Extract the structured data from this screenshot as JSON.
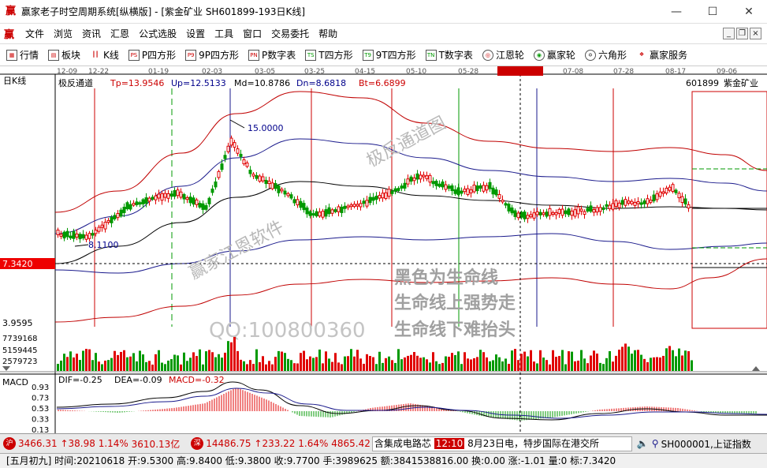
{
  "window": {
    "title": "赢家老子时空周期系统[纵横版] - [紫金矿业  SH601899-193日K线]",
    "controls": [
      "—",
      "☐",
      "✕"
    ]
  },
  "menu": {
    "items": [
      "文件",
      "浏览",
      "资讯",
      "汇恩",
      "公式选股",
      "设置",
      "工具",
      "窗口",
      "交易委托",
      "帮助"
    ],
    "mdi_controls": [
      "_",
      "❐",
      "×"
    ]
  },
  "toolbar": {
    "items": [
      {
        "label": "行情",
        "icon": "grid-icon"
      },
      {
        "label": "板块",
        "icon": "board-icon"
      },
      {
        "label": "K线",
        "icon": "kline-icon"
      },
      {
        "label": "P四方形",
        "icon": "ps-icon",
        "badge": "PS"
      },
      {
        "label": "9P四方形",
        "icon": "p9-icon",
        "badge": "P9"
      },
      {
        "label": "P数字表",
        "icon": "pn-icon",
        "badge": "PN"
      },
      {
        "label": "T四方形",
        "icon": "ts-icon",
        "badge": "TS"
      },
      {
        "label": "9T四方形",
        "icon": "t9-icon",
        "badge": "T9"
      },
      {
        "label": "T数字表",
        "icon": "tn-icon",
        "badge": "TN"
      },
      {
        "label": "江恩轮",
        "icon": "gann-wheel-icon"
      },
      {
        "label": "赢家轮",
        "icon": "winner-wheel-icon"
      },
      {
        "label": "六角形",
        "icon": "hexagon-icon"
      },
      {
        "label": "赢家服务",
        "icon": "service-icon"
      }
    ]
  },
  "chart": {
    "period_label": "日K线",
    "date_ticks": [
      "12-09",
      "12-22",
      "01-19",
      "02-03",
      "03-05",
      "03-25",
      "04-15",
      "05-10",
      "05-28",
      "2021-06-18",
      "07-08",
      "07-28",
      "08-17",
      "09-06"
    ],
    "indicator": {
      "name": "极反通道",
      "tp": "Tp=13.9546",
      "up": "Up=12.5133",
      "md": "Md=10.8786",
      "dn": "Dn=8.6818",
      "bt": "Bt=6.6899"
    },
    "stock": {
      "code": "601899",
      "name": "紫金矿业"
    },
    "high_label": "15.0000",
    "low_label": "8.1100",
    "cursor_price": "7.3420",
    "bottom_price": "3.9595",
    "volume_ticks": [
      "7739168",
      "5159445",
      "2579723"
    ],
    "watermarks": [
      "极反通道图",
      "赢家江恩软件",
      "QQ:100800360"
    ],
    "annotations": [
      "黑色为生命线",
      "生命线上强势走",
      "生命线下难抬头"
    ],
    "macd": {
      "label": "MACD",
      "dif": "DIF=-0.25",
      "dea": "DEA=-0.09",
      "macd": "MACD=-0.32",
      "ticks": [
        "0.93",
        "0.73",
        "0.53",
        "0.33",
        "0.13",
        "-0.07",
        "-0.27"
      ]
    }
  },
  "ticker": {
    "sh": {
      "index": "3466.31",
      "change": "38.98",
      "pct": "1.14%",
      "amount": "3610.13亿"
    },
    "sz": {
      "index": "14486.75",
      "change": "233.22",
      "pct": "1.64%",
      "amount": "4865.42"
    },
    "news_prefix": "含集成电路芯",
    "news_time": "12:10",
    "news_text": "8月23日电，特步国际在港交所",
    "index_selector": "SH000001,上证指数"
  },
  "status": {
    "text": "[五月初九] 时间:20210618 开:9.5300 高:9.8400 低:9.3800 收:9.7700 手:3989625 额:3841538816.00 换:0.00 涨:-1.01 量:0 标:7.3420"
  },
  "colors": {
    "up": "#e00000",
    "down": "#009900",
    "channel_outer": "#c00000",
    "channel_inner": "#1a1a8c",
    "mid": "#000000"
  }
}
